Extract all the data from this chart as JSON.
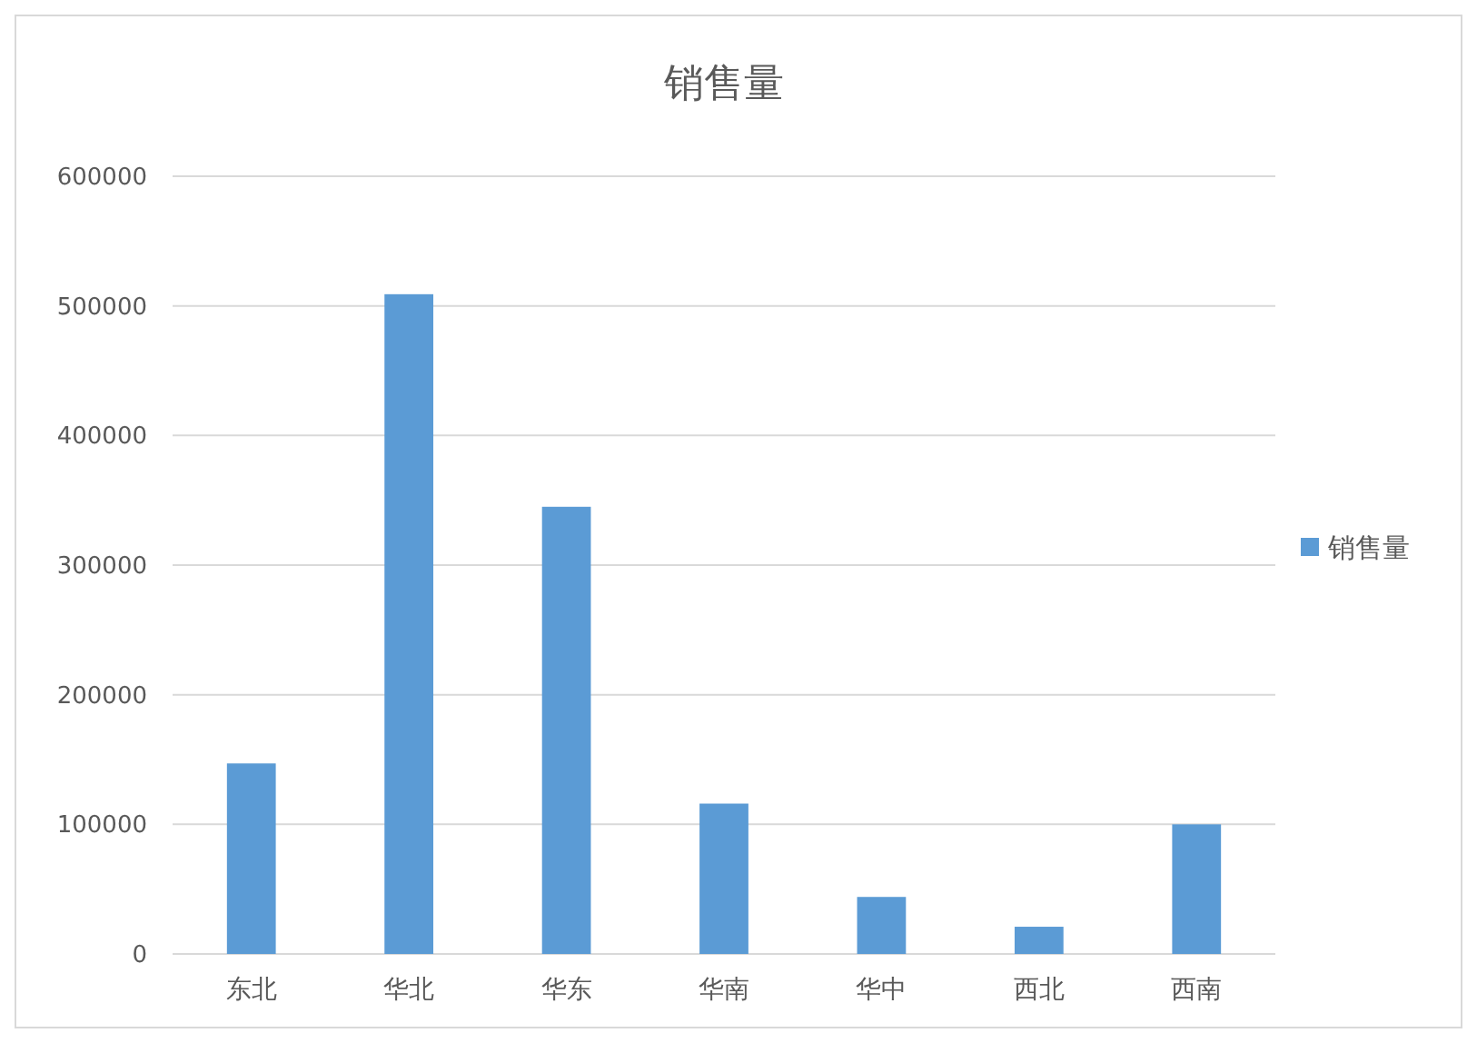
{
  "chart_data": {
    "type": "bar",
    "title": "销售量",
    "categories": [
      "东北",
      "华北",
      "华东",
      "华南",
      "华中",
      "西北",
      "西南"
    ],
    "series": [
      {
        "name": "销售量",
        "color": "#5b9bd5",
        "values": [
          147000,
          509000,
          345000,
          116000,
          44000,
          21000,
          100000
        ]
      }
    ],
    "ylim": [
      0,
      600000
    ],
    "yticks": [
      0,
      100000,
      200000,
      300000,
      400000,
      500000,
      600000
    ],
    "grid": "y",
    "legend": "right"
  }
}
